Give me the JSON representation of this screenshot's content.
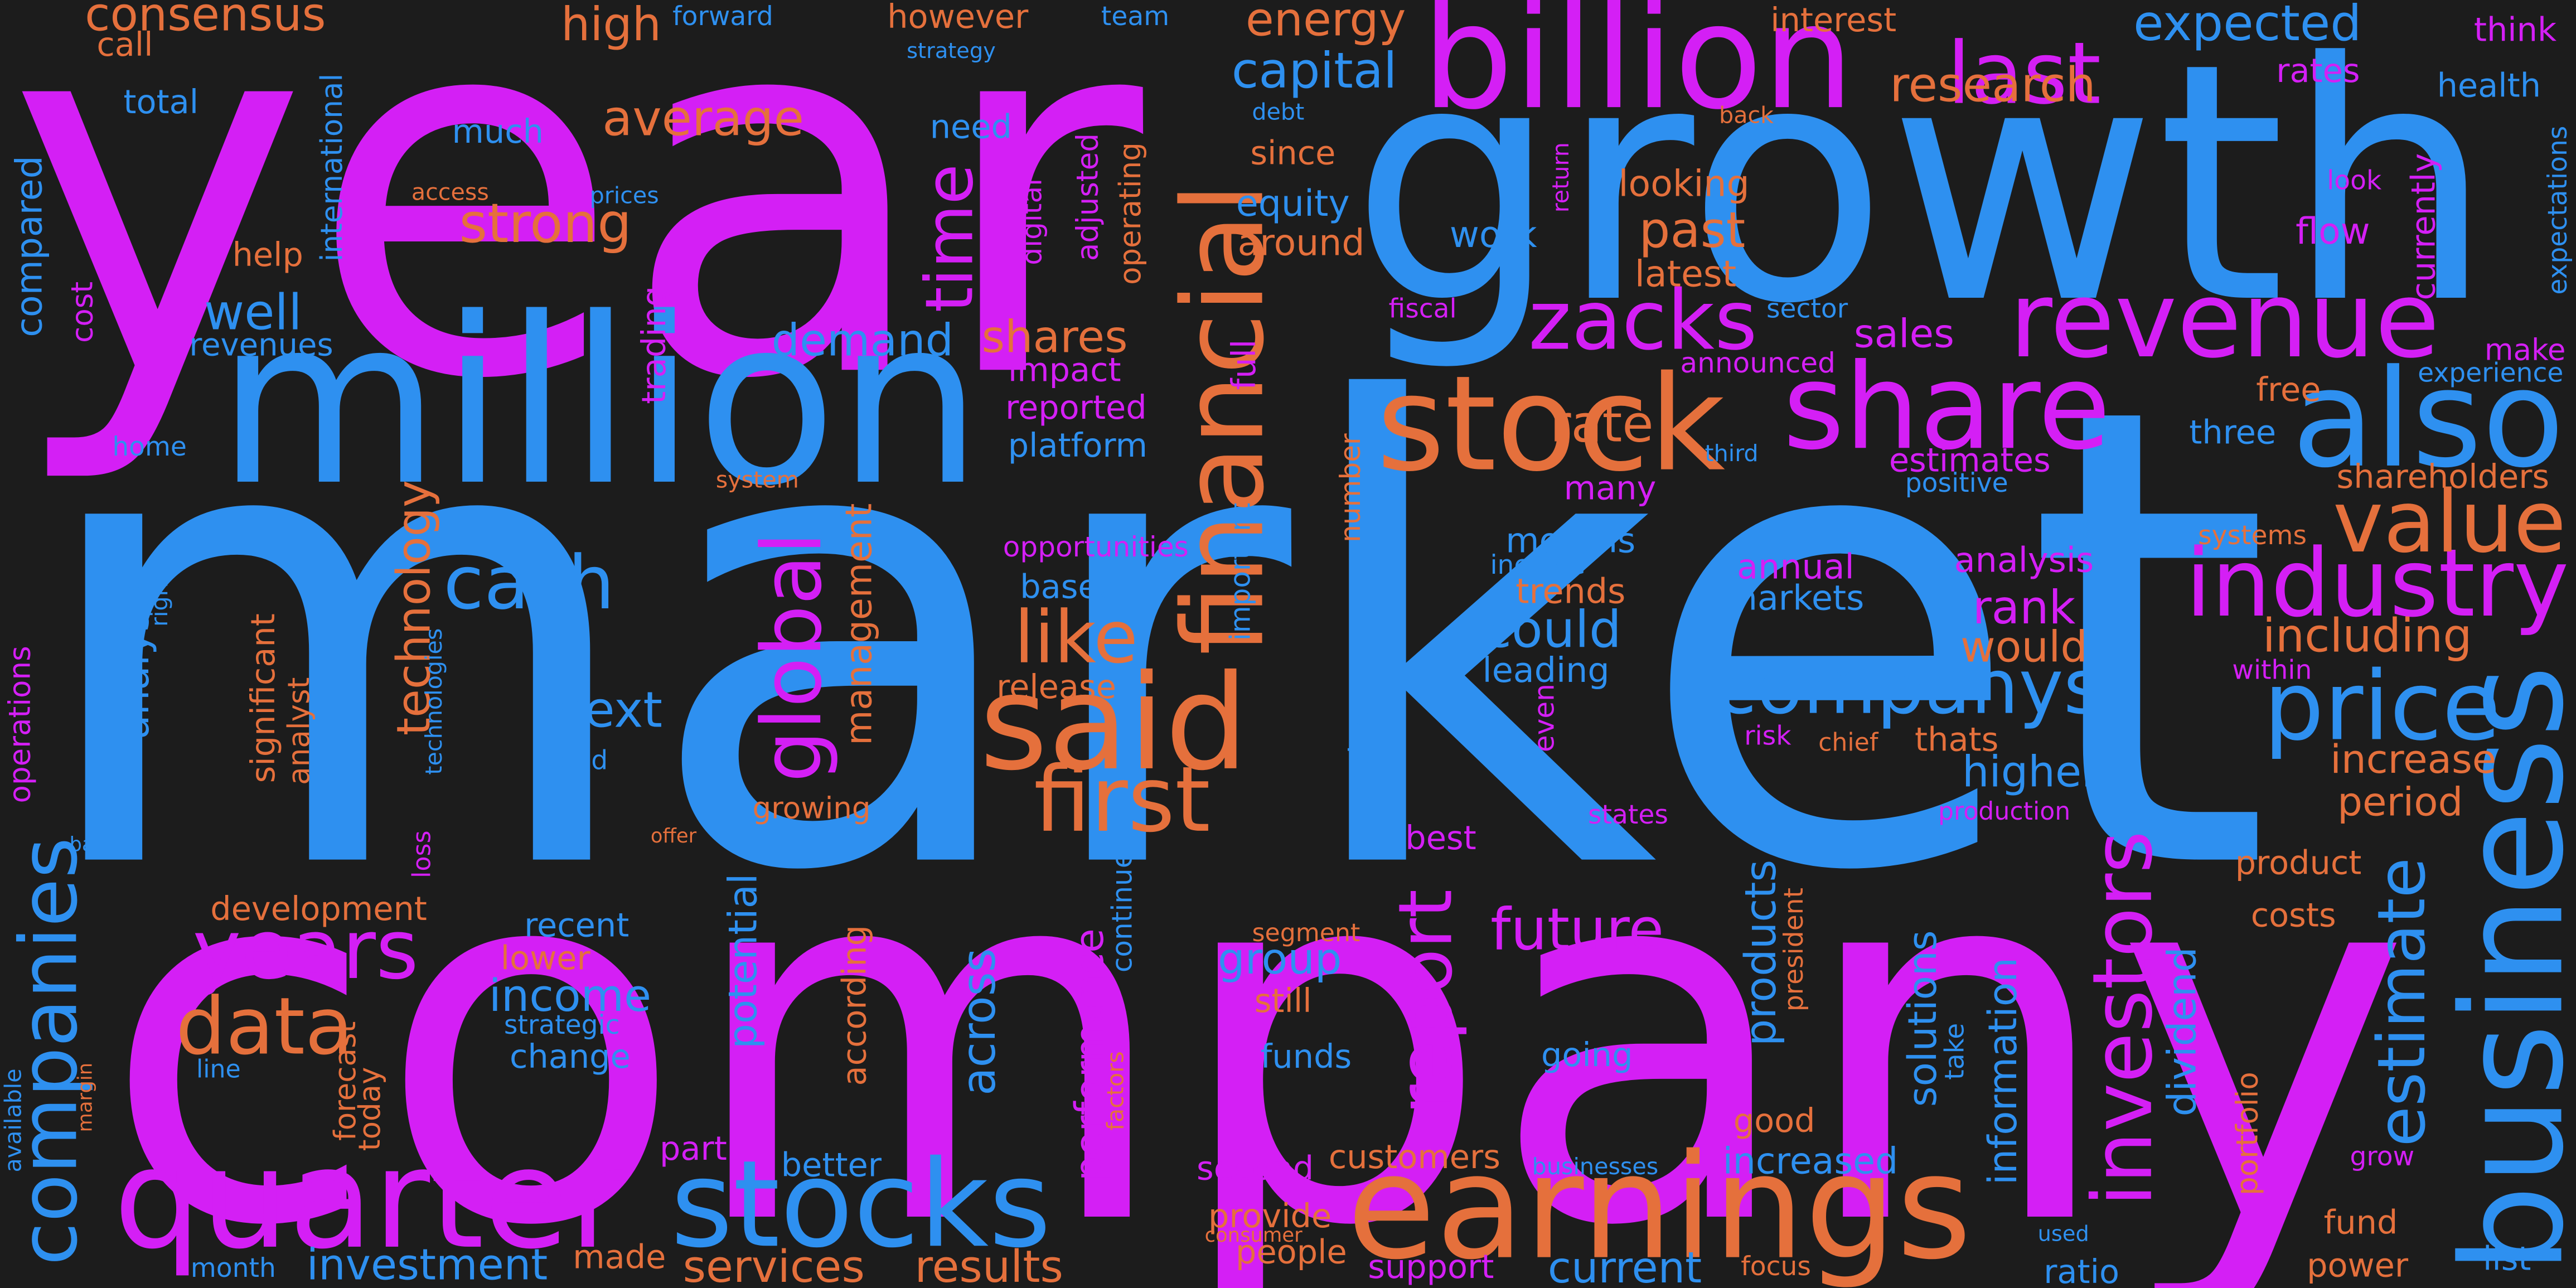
{
  "words": [
    {
      "text": "year",
      "color": "#d41ff5"
    },
    {
      "text": "market",
      "color": "#2e90f0"
    },
    {
      "text": "company",
      "color": "#d41ff5"
    },
    {
      "text": "growth",
      "color": "#2e90f0"
    },
    {
      "text": "million",
      "color": "#2e90f0"
    },
    {
      "text": "billion",
      "color": "#d41ff5"
    },
    {
      "text": "stock",
      "color": "#e5703c"
    },
    {
      "text": "share",
      "color": "#d41ff5"
    },
    {
      "text": "revenue",
      "color": "#d41ff5"
    },
    {
      "text": "also",
      "color": "#2e90f0"
    },
    {
      "text": "said",
      "color": "#e5703c"
    },
    {
      "text": "financial",
      "color": "#e5703c"
    },
    {
      "text": "earnings",
      "color": "#e5703c"
    },
    {
      "text": "business",
      "color": "#2e90f0"
    },
    {
      "text": "quarter",
      "color": "#d41ff5"
    },
    {
      "text": "stocks",
      "color": "#2e90f0"
    },
    {
      "text": "industry",
      "color": "#d41ff5"
    },
    {
      "text": "price",
      "color": "#2e90f0"
    },
    {
      "text": "value",
      "color": "#e5703c"
    },
    {
      "text": "companys",
      "color": "#2e90f0"
    },
    {
      "text": "zacks",
      "color": "#d41ff5"
    },
    {
      "text": "last",
      "color": "#d41ff5"
    },
    {
      "text": "expected",
      "color": "#2e90f0"
    },
    {
      "text": "estimate",
      "color": "#2e90f0"
    },
    {
      "text": "investors",
      "color": "#d41ff5"
    },
    {
      "text": "report",
      "color": "#d41ff5"
    },
    {
      "text": "global",
      "color": "#d41ff5"
    },
    {
      "text": "time",
      "color": "#d41ff5"
    },
    {
      "text": "first",
      "color": "#e5703c"
    },
    {
      "text": "like",
      "color": "#e5703c"
    },
    {
      "text": "cash",
      "color": "#2e90f0"
    },
    {
      "text": "data",
      "color": "#e5703c"
    },
    {
      "text": "years",
      "color": "#d41ff5"
    },
    {
      "text": "companies",
      "color": "#2e90f0"
    },
    {
      "text": "future",
      "color": "#d41ff5"
    },
    {
      "text": "income",
      "color": "#2e90f0"
    },
    {
      "text": "rank",
      "color": "#d41ff5"
    },
    {
      "text": "would",
      "color": "#e5703c"
    },
    {
      "text": "could",
      "color": "#2e90f0"
    },
    {
      "text": "next",
      "color": "#2e90f0"
    },
    {
      "text": "rate",
      "color": "#e5703c"
    },
    {
      "text": "strong",
      "color": "#e5703c"
    },
    {
      "text": "average",
      "color": "#e5703c"
    },
    {
      "text": "energy",
      "color": "#e5703c"
    },
    {
      "text": "capital",
      "color": "#2e90f0"
    },
    {
      "text": "research",
      "color": "#e5703c"
    },
    {
      "text": "high",
      "color": "#e5703c"
    },
    {
      "text": "consensus",
      "color": "#e5703c"
    },
    {
      "text": "call",
      "color": "#e5703c"
    },
    {
      "text": "forward",
      "color": "#2e90f0"
    },
    {
      "text": "however",
      "color": "#e5703c"
    },
    {
      "text": "team",
      "color": "#2e90f0"
    },
    {
      "text": "interest",
      "color": "#e5703c"
    },
    {
      "text": "think",
      "color": "#d41ff5"
    },
    {
      "text": "rates",
      "color": "#d41ff5"
    },
    {
      "text": "health",
      "color": "#2e90f0"
    },
    {
      "text": "total",
      "color": "#2e90f0"
    },
    {
      "text": "much",
      "color": "#2e90f0"
    },
    {
      "text": "strategy",
      "color": "#2e90f0"
    },
    {
      "text": "need",
      "color": "#2e90f0"
    },
    {
      "text": "since",
      "color": "#e5703c"
    },
    {
      "text": "debt",
      "color": "#2e90f0"
    },
    {
      "text": "back",
      "color": "#e5703c"
    },
    {
      "text": "looking",
      "color": "#e5703c"
    },
    {
      "text": "return",
      "color": "#d41ff5"
    },
    {
      "text": "look",
      "color": "#d41ff5"
    },
    {
      "text": "international",
      "color": "#2e90f0"
    },
    {
      "text": "compared",
      "color": "#2e90f0"
    },
    {
      "text": "digital",
      "color": "#d41ff5"
    },
    {
      "text": "adjusted",
      "color": "#d41ff5"
    },
    {
      "text": "operating",
      "color": "#e5703c"
    },
    {
      "text": "access",
      "color": "#e5703c"
    },
    {
      "text": "prices",
      "color": "#2e90f0"
    },
    {
      "text": "help",
      "color": "#e5703c"
    },
    {
      "text": "equity",
      "color": "#2e90f0"
    },
    {
      "text": "around",
      "color": "#e5703c"
    },
    {
      "text": "past",
      "color": "#e5703c"
    },
    {
      "text": "work",
      "color": "#2e90f0"
    },
    {
      "text": "latest",
      "color": "#e5703c"
    },
    {
      "text": "flow",
      "color": "#d41ff5"
    },
    {
      "text": "currently",
      "color": "#d41ff5"
    },
    {
      "text": "expectations",
      "color": "#2e90f0"
    },
    {
      "text": "cost",
      "color": "#d41ff5"
    },
    {
      "text": "well",
      "color": "#2e90f0"
    },
    {
      "text": "revenues",
      "color": "#2e90f0"
    },
    {
      "text": "trading",
      "color": "#d41ff5"
    },
    {
      "text": "demand",
      "color": "#2e90f0"
    },
    {
      "text": "shares",
      "color": "#e5703c"
    },
    {
      "text": "full",
      "color": "#d41ff5"
    },
    {
      "text": "fiscal",
      "color": "#d41ff5"
    },
    {
      "text": "sector",
      "color": "#2e90f0"
    },
    {
      "text": "sales",
      "color": "#d41ff5"
    },
    {
      "text": "make",
      "color": "#d41ff5"
    },
    {
      "text": "impact",
      "color": "#d41ff5"
    },
    {
      "text": "announced",
      "color": "#d41ff5"
    },
    {
      "text": "experience",
      "color": "#2e90f0"
    },
    {
      "text": "reported",
      "color": "#d41ff5"
    },
    {
      "text": "free",
      "color": "#e5703c"
    },
    {
      "text": "home",
      "color": "#2e90f0"
    },
    {
      "text": "platform",
      "color": "#2e90f0"
    },
    {
      "text": "three",
      "color": "#2e90f0"
    },
    {
      "text": "estimates",
      "color": "#d41ff5"
    },
    {
      "text": "third",
      "color": "#2e90f0"
    },
    {
      "text": "system",
      "color": "#e5703c"
    },
    {
      "text": "technology",
      "color": "#e5703c"
    },
    {
      "text": "positive",
      "color": "#2e90f0"
    },
    {
      "text": "shareholders",
      "color": "#e5703c"
    },
    {
      "text": "many",
      "color": "#d41ff5"
    },
    {
      "text": "important",
      "color": "#2e90f0"
    },
    {
      "text": "number",
      "color": "#e5703c"
    },
    {
      "text": "systems",
      "color": "#e5703c"
    },
    {
      "text": "management",
      "color": "#e5703c"
    },
    {
      "text": "opportunities",
      "color": "#d41ff5"
    },
    {
      "text": "months",
      "color": "#2e90f0"
    },
    {
      "text": "include",
      "color": "#2e90f0"
    },
    {
      "text": "annual",
      "color": "#d41ff5"
    },
    {
      "text": "analysis",
      "color": "#d41ff5"
    },
    {
      "text": "based",
      "color": "#2e90f0"
    },
    {
      "text": "trends",
      "color": "#e5703c"
    },
    {
      "text": "markets",
      "color": "#2e90f0"
    },
    {
      "text": "including",
      "color": "#e5703c"
    },
    {
      "text": "analysts",
      "color": "#2e90f0"
    },
    {
      "text": "right",
      "color": "#2e90f0"
    },
    {
      "text": "operations",
      "color": "#d41ff5"
    },
    {
      "text": "significant",
      "color": "#e5703c"
    },
    {
      "text": "technologies",
      "color": "#2e90f0"
    },
    {
      "text": "analyst",
      "color": "#e5703c"
    },
    {
      "text": "leading",
      "color": "#2e90f0"
    },
    {
      "text": "within",
      "color": "#d41ff5"
    },
    {
      "text": "release",
      "color": "#e5703c"
    },
    {
      "text": "service",
      "color": "#2e90f0"
    },
    {
      "text": "even",
      "color": "#d41ff5"
    },
    {
      "text": "risk",
      "color": "#d41ff5"
    },
    {
      "text": "chief",
      "color": "#e5703c"
    },
    {
      "text": "thats",
      "color": "#e5703c"
    },
    {
      "text": "increase",
      "color": "#e5703c"
    },
    {
      "text": "world",
      "color": "#2e90f0"
    },
    {
      "text": "higher",
      "color": "#2e90f0"
    },
    {
      "text": "period",
      "color": "#e5703c"
    },
    {
      "text": "growing",
      "color": "#e5703c"
    },
    {
      "text": "production",
      "color": "#d41ff5"
    },
    {
      "text": "states",
      "color": "#d41ff5"
    },
    {
      "text": "best",
      "color": "#d41ff5"
    },
    {
      "text": "bank",
      "color": "#2e90f0"
    },
    {
      "text": "offer",
      "color": "#e5703c"
    },
    {
      "text": "loss",
      "color": "#d41ff5"
    },
    {
      "text": "continue",
      "color": "#2e90f0"
    },
    {
      "text": "products",
      "color": "#2e90f0"
    },
    {
      "text": "president",
      "color": "#e5703c"
    },
    {
      "text": "product",
      "color": "#e5703c"
    },
    {
      "text": "potential",
      "color": "#2e90f0"
    },
    {
      "text": "development",
      "color": "#e5703c"
    },
    {
      "text": "recent",
      "color": "#2e90f0"
    },
    {
      "text": "segment",
      "color": "#e5703c"
    },
    {
      "text": "costs",
      "color": "#e5703c"
    },
    {
      "text": "group",
      "color": "#2e90f0"
    },
    {
      "text": "solutions",
      "color": "#2e90f0"
    },
    {
      "text": "according",
      "color": "#e5703c"
    },
    {
      "text": "across",
      "color": "#2e90f0"
    },
    {
      "text": "performance",
      "color": "#d41ff5"
    },
    {
      "text": "lower",
      "color": "#e5703c"
    },
    {
      "text": "dividend",
      "color": "#2e90f0"
    },
    {
      "text": "information",
      "color": "#2e90f0"
    },
    {
      "text": "take",
      "color": "#2e90f0"
    },
    {
      "text": "still",
      "color": "#e5703c"
    },
    {
      "text": "strategic",
      "color": "#2e90f0"
    },
    {
      "text": "change",
      "color": "#2e90f0"
    },
    {
      "text": "funds",
      "color": "#2e90f0"
    },
    {
      "text": "going",
      "color": "#2e90f0"
    },
    {
      "text": "portfolio",
      "color": "#e5703c"
    },
    {
      "text": "forecast",
      "color": "#e5703c"
    },
    {
      "text": "factors",
      "color": "#e5703c"
    },
    {
      "text": "today",
      "color": "#e5703c"
    },
    {
      "text": "available",
      "color": "#2e90f0"
    },
    {
      "text": "margin",
      "color": "#e5703c"
    },
    {
      "text": "line",
      "color": "#2e90f0"
    },
    {
      "text": "good",
      "color": "#e5703c"
    },
    {
      "text": "part",
      "color": "#d41ff5"
    },
    {
      "text": "customers",
      "color": "#e5703c"
    },
    {
      "text": "increased",
      "color": "#2e90f0"
    },
    {
      "text": "better",
      "color": "#2e90f0"
    },
    {
      "text": "second",
      "color": "#d41ff5"
    },
    {
      "text": "businesses",
      "color": "#2e90f0"
    },
    {
      "text": "grow",
      "color": "#d41ff5"
    },
    {
      "text": "provide",
      "color": "#e5703c"
    },
    {
      "text": "fund",
      "color": "#e5703c"
    },
    {
      "text": "used",
      "color": "#2e90f0"
    },
    {
      "text": "consumer",
      "color": "#e5703c"
    },
    {
      "text": "made",
      "color": "#e5703c"
    },
    {
      "text": "investment",
      "color": "#2e90f0"
    },
    {
      "text": "month",
      "color": "#2e90f0"
    },
    {
      "text": "services",
      "color": "#e5703c"
    },
    {
      "text": "results",
      "color": "#e5703c"
    },
    {
      "text": "people",
      "color": "#e5703c"
    },
    {
      "text": "support",
      "color": "#d41ff5"
    },
    {
      "text": "current",
      "color": "#2e90f0"
    },
    {
      "text": "focus",
      "color": "#e5703c"
    },
    {
      "text": "ratio",
      "color": "#2e90f0"
    },
    {
      "text": "power",
      "color": "#e5703c"
    },
    {
      "text": "list",
      "color": "#2e90f0"
    }
  ]
}
